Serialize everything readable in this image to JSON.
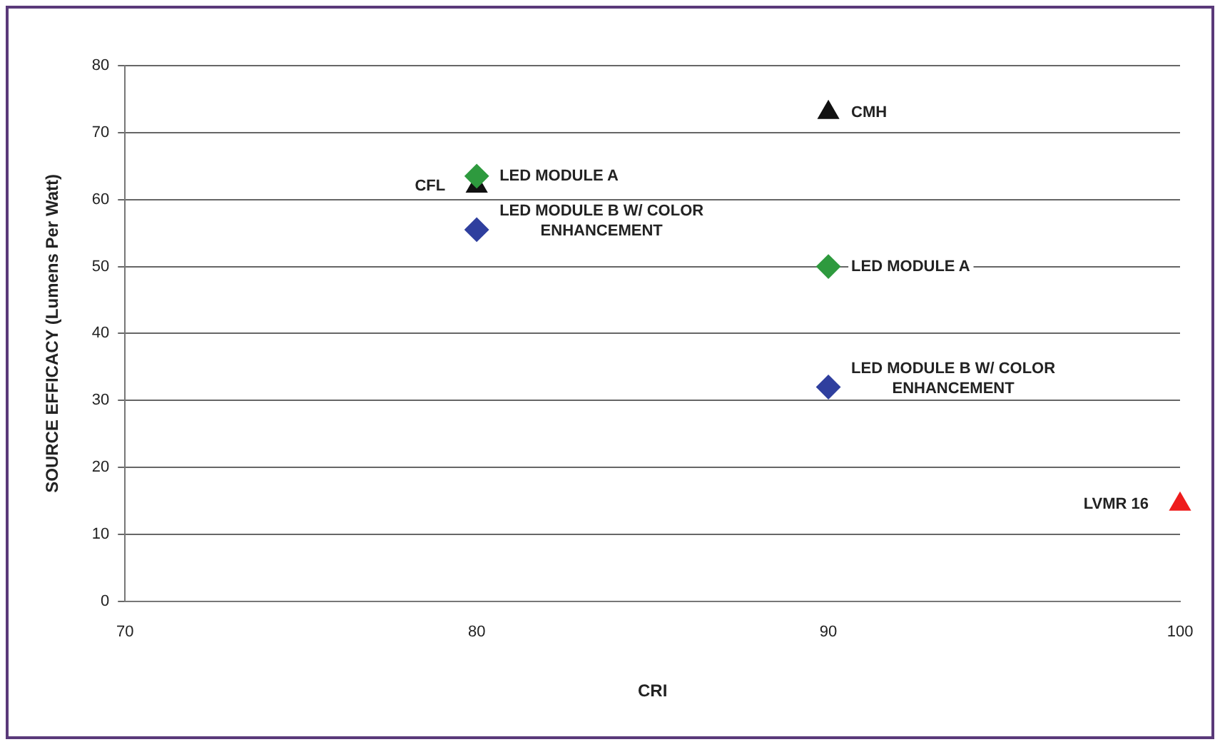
{
  "chart_data": {
    "type": "scatter",
    "xlabel": "CRI",
    "ylabel": "SOURCE EFFICACY (Lumens Per Watt)",
    "xlim": [
      70,
      100
    ],
    "xticks": [
      70,
      80,
      90,
      100
    ],
    "ylim": [
      0,
      80
    ],
    "yticks": [
      0,
      10,
      20,
      30,
      40,
      50,
      60,
      70,
      80
    ],
    "grid": "y",
    "series": [
      {
        "color": "#2e9a3e",
        "marker": "diamond",
        "x": [
          80,
          90
        ],
        "values": [
          63.5,
          50
        ]
      },
      {
        "color": "#2f3f9e",
        "marker": "diamond",
        "x": [
          80,
          90
        ],
        "values": [
          55.5,
          32
        ]
      },
      {
        "color": "#111111",
        "marker": "triangle",
        "x": [
          80,
          90
        ],
        "values": [
          62,
          73
        ]
      },
      {
        "color": "#ee1c1c",
        "marker": "triangle",
        "x": [
          100
        ],
        "values": [
          14.5
        ]
      }
    ],
    "annotations": [
      {
        "text": "LED MODULE A",
        "x": 80,
        "y": 63.5
      },
      {
        "text": "CFL",
        "x": 80,
        "y": 62
      },
      {
        "text": "LED MODULE B W/ COLOR ENHANCEMENT",
        "x": 80,
        "y": 55.5
      },
      {
        "text": "CMH",
        "x": 90,
        "y": 73
      },
      {
        "text": "LED MODULE A",
        "x": 90,
        "y": 50
      },
      {
        "text": "LED MODULE B W/ COLOR ENHANCEMENT",
        "x": 90,
        "y": 32
      },
      {
        "text": "LVMR 16",
        "x": 100,
        "y": 14.5
      }
    ]
  }
}
